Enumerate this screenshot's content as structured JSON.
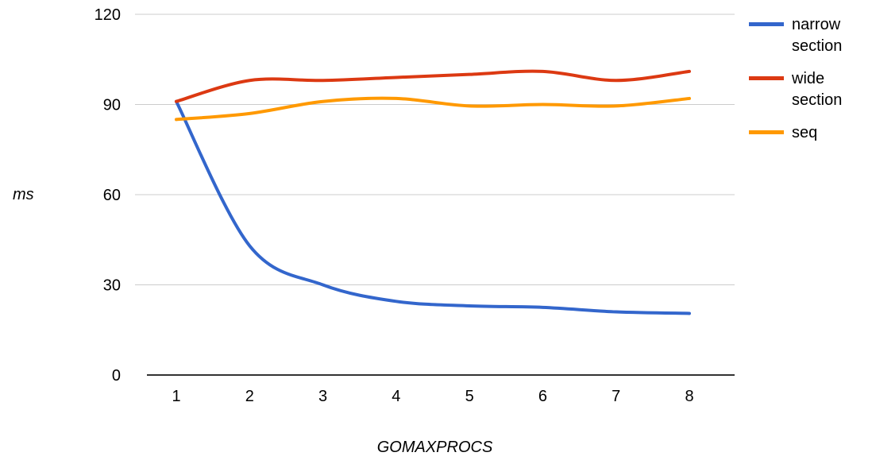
{
  "chart_data": {
    "type": "line",
    "title": "",
    "xlabel": "GOMAXPROCS",
    "ylabel": "ms",
    "x": [
      1,
      2,
      3,
      4,
      5,
      6,
      7,
      8
    ],
    "series": [
      {
        "name": "narrow section",
        "color": "#3366CC",
        "values": [
          91,
          43,
          30,
          24.5,
          23,
          22.5,
          21,
          20.5
        ]
      },
      {
        "name": "wide section",
        "color": "#DC3912",
        "values": [
          91,
          98,
          98,
          99,
          100,
          101,
          98,
          101
        ]
      },
      {
        "name": "seq",
        "color": "#FF9900",
        "values": [
          85,
          87,
          91,
          92,
          89.5,
          90,
          89.5,
          92
        ]
      }
    ],
    "ylim": [
      0,
      120
    ],
    "yticks": [
      0,
      30,
      60,
      90,
      120
    ],
    "grid": true,
    "smooth": true,
    "legend_position": "right",
    "colors": {
      "gridline": "#cccccc",
      "axis": "#333333",
      "tick_text": "#000000"
    }
  }
}
